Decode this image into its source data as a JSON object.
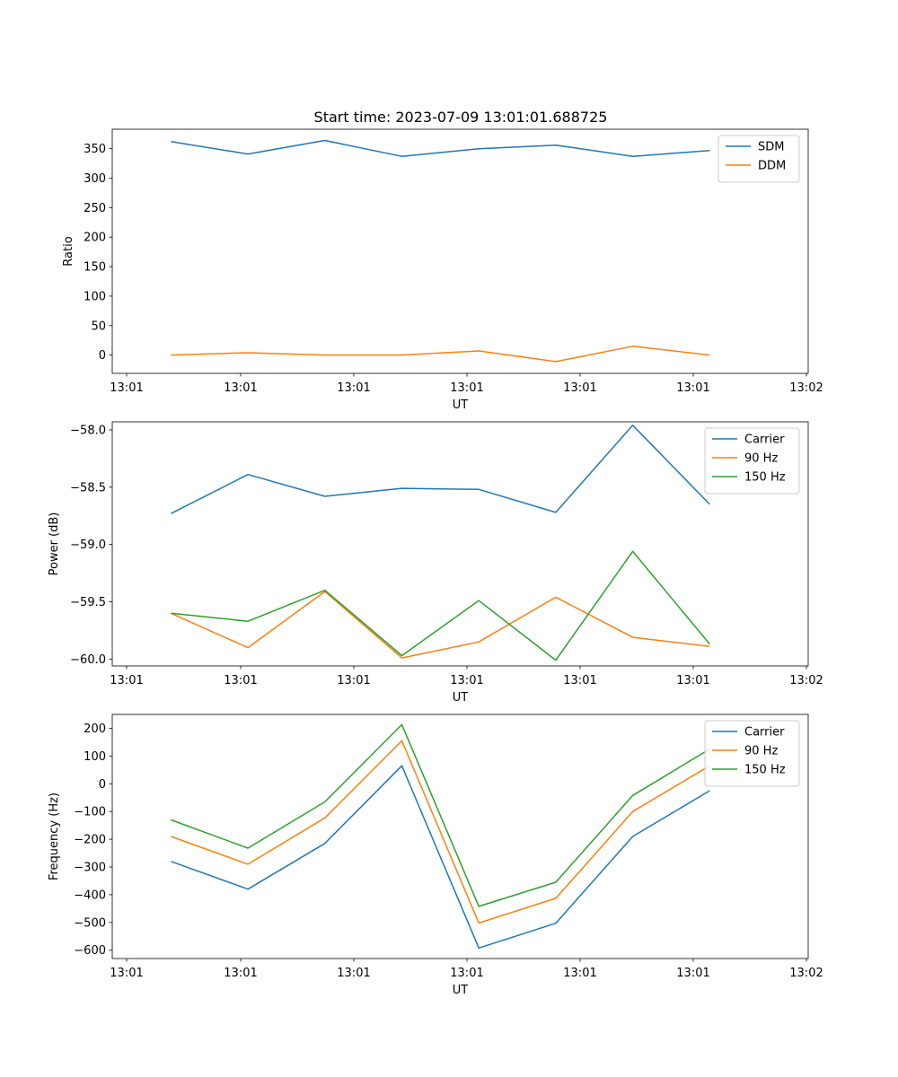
{
  "figure_title": "Start time: 2023-07-09 13:01:01.688725",
  "colors": {
    "blue": "#1f77b4",
    "orange": "#ff7f0e",
    "green": "#2ca02c"
  },
  "chart_data": [
    {
      "type": "line",
      "title": "Start time: 2023-07-09 13:01:01.688725",
      "xlabel": "UT",
      "ylabel": "Ratio",
      "x_tick_labels": [
        "13:01",
        "13:01",
        "13:01",
        "13:01",
        "13:01",
        "13:01",
        "13:02"
      ],
      "y_ticks": [
        0,
        50,
        100,
        150,
        200,
        250,
        300,
        350
      ],
      "y_tick_labels": [
        "0",
        "50",
        "100",
        "150",
        "200",
        "250",
        "300",
        "350"
      ],
      "ylim": [
        -31,
        383
      ],
      "legend_position": "top-right",
      "x": [
        1,
        2,
        3,
        4,
        5,
        6,
        7,
        8
      ],
      "series": [
        {
          "name": "SDM",
          "color": "#1f77b4",
          "values": [
            362,
            341,
            364,
            337,
            350,
            356,
            337,
            347
          ]
        },
        {
          "name": "DDM",
          "color": "#ff7f0e",
          "values": [
            0,
            4,
            0,
            0,
            7,
            -11,
            15,
            0
          ]
        }
      ]
    },
    {
      "type": "line",
      "title": "",
      "xlabel": "UT",
      "ylabel": "Power (dB)",
      "x_tick_labels": [
        "13:01",
        "13:01",
        "13:01",
        "13:01",
        "13:01",
        "13:01",
        "13:02"
      ],
      "y_ticks": [
        -60.0,
        -59.5,
        -59.0,
        -58.5,
        -58.0
      ],
      "y_tick_labels": [
        "−60.0",
        "−59.5",
        "−59.0",
        "−58.5",
        "−58.0"
      ],
      "ylim": [
        -60.06,
        -57.93
      ],
      "legend_position": "top-right",
      "x": [
        1,
        2,
        3,
        4,
        5,
        6,
        7,
        8
      ],
      "series": [
        {
          "name": "Carrier",
          "color": "#1f77b4",
          "values": [
            -58.73,
            -58.39,
            -58.58,
            -58.51,
            -58.52,
            -58.72,
            -57.96,
            -58.65
          ]
        },
        {
          "name": "90 Hz",
          "color": "#ff7f0e",
          "values": [
            -59.6,
            -59.9,
            -59.41,
            -59.99,
            -59.85,
            -59.46,
            -59.81,
            -59.89
          ]
        },
        {
          "name": "150 Hz",
          "color": "#2ca02c",
          "values": [
            -59.6,
            -59.67,
            -59.4,
            -59.97,
            -59.49,
            -60.01,
            -59.06,
            -59.87
          ]
        }
      ]
    },
    {
      "type": "line",
      "title": "",
      "xlabel": "UT",
      "ylabel": "Frequency (Hz)",
      "x_tick_labels": [
        "13:01",
        "13:01",
        "13:01",
        "13:01",
        "13:01",
        "13:01",
        "13:02"
      ],
      "y_ticks": [
        -600,
        -500,
        -400,
        -300,
        -200,
        -100,
        0,
        100,
        200
      ],
      "y_tick_labels": [
        "−600",
        "−500",
        "−400",
        "−300",
        "−200",
        "−100",
        "0",
        "100",
        "200"
      ],
      "ylim": [
        -630,
        250
      ],
      "legend_position": "top-right",
      "x": [
        1,
        2,
        3,
        4,
        5,
        6,
        7,
        8
      ],
      "series": [
        {
          "name": "Carrier",
          "color": "#1f77b4",
          "values": [
            -280,
            -380,
            -215,
            65,
            -592,
            -503,
            -190,
            -25
          ]
        },
        {
          "name": "90 Hz",
          "color": "#ff7f0e",
          "values": [
            -190,
            -290,
            -123,
            155,
            -502,
            -413,
            -100,
            65
          ]
        },
        {
          "name": "150 Hz",
          "color": "#2ca02c",
          "values": [
            -130,
            -232,
            -65,
            213,
            -442,
            -355,
            -42,
            125
          ]
        }
      ]
    }
  ]
}
